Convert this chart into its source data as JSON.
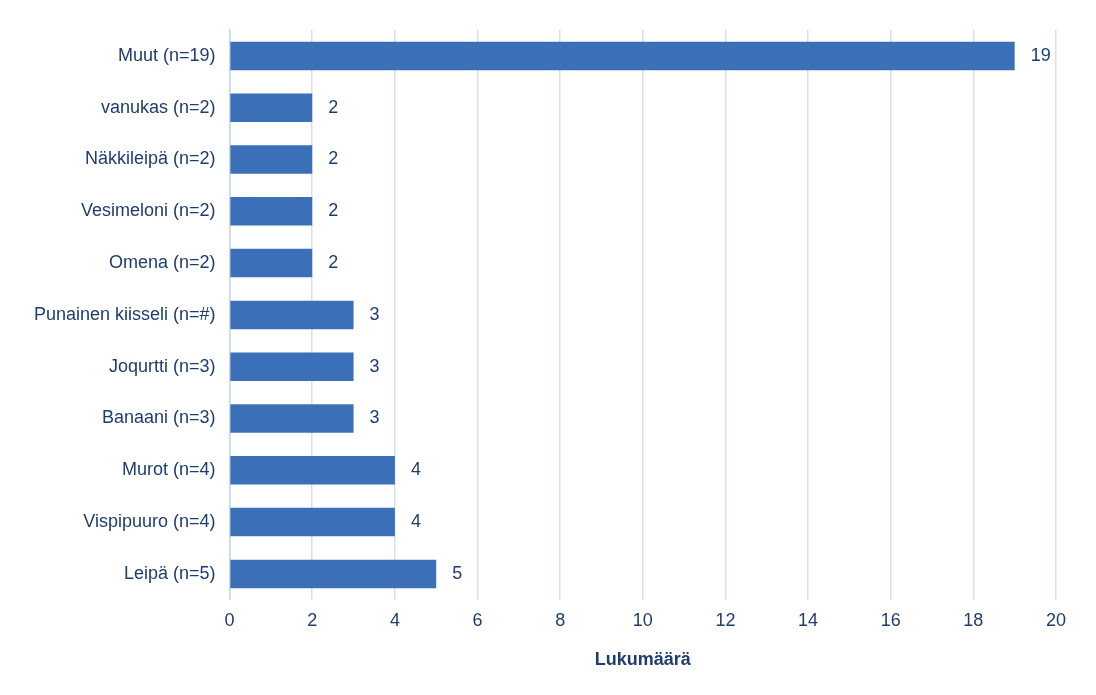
{
  "chart_data": {
    "type": "bar",
    "orientation": "horizontal",
    "xlabel": "Lukumäärä",
    "categories": [
      "Muut (n=19)",
      "vanukas (n=2)",
      "Näkkileipä (n=2)",
      "Vesimeloni (n=2)",
      "Omena (n=2)",
      "Punainen kiisseli (n=#)",
      "Joqurtti (n=3)",
      "Banaani (n=3)",
      "Murot (n=4)",
      "Vispipuuro (n=4)",
      "Leipä (n=5)"
    ],
    "values": [
      19,
      2,
      2,
      2,
      2,
      3,
      3,
      3,
      4,
      4,
      5
    ],
    "color": "#3b70b9",
    "xlim": [
      0,
      20
    ],
    "xticks": [
      0,
      2,
      4,
      6,
      8,
      10,
      12,
      14,
      16,
      18,
      20
    ],
    "grid": "x",
    "data_labels": true,
    "legend": false
  }
}
